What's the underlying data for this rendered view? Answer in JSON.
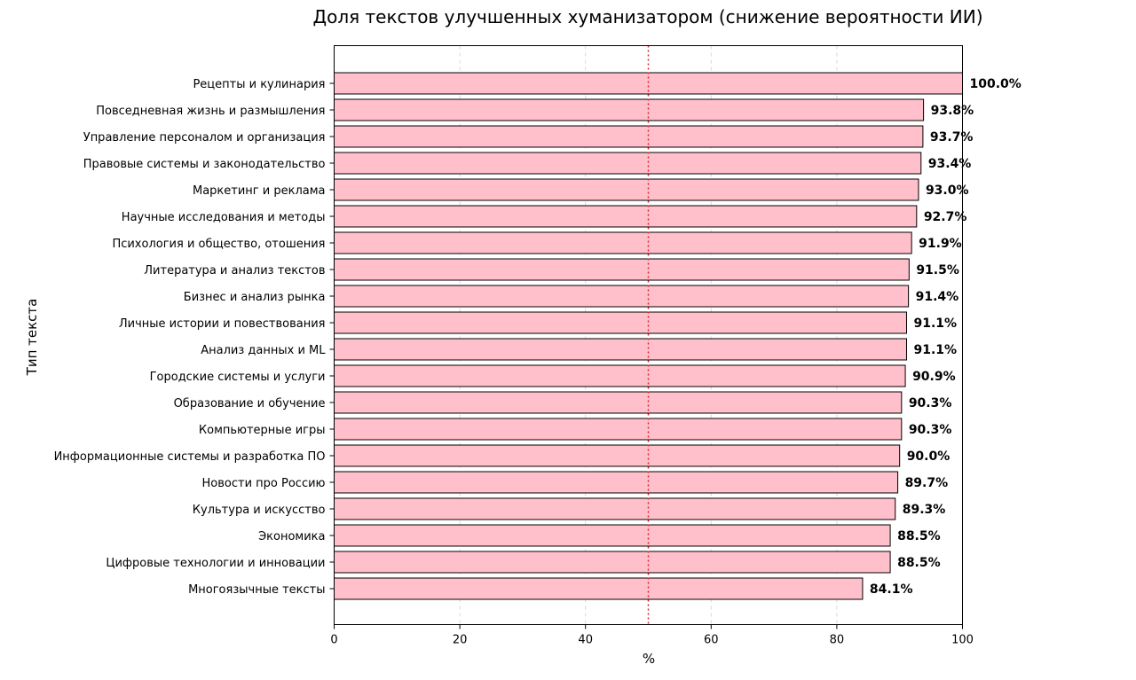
{
  "chart_data": {
    "type": "bar",
    "orientation": "horizontal",
    "title": "Доля текстов улучшенных хуманизатором (снижение вероятности ИИ)",
    "xlabel": "%",
    "ylabel": "Тип текста",
    "xlim": [
      0,
      100
    ],
    "xticks": [
      "0",
      "20",
      "40",
      "60",
      "80",
      "100"
    ],
    "grid": "vertical-dashed",
    "reference_line": {
      "x": 50,
      "style": "dotted",
      "color": "#d62728"
    },
    "bar_color": "#ffc0cb",
    "bar_edge_color": "#000000",
    "categories": [
      "Рецепты и кулинария",
      "Повседневная жизнь и размышления",
      "Управление персоналом и организация",
      "Правовые системы и законодательство",
      "Маркетинг и реклама",
      "Научные исследования и методы",
      "Психология и общество, отошения",
      "Литература и анализ текстов",
      "Бизнес и анализ рынка",
      "Личные истории и повествования",
      "Анализ данных и ML",
      "Городские системы и услуги",
      "Образование и обучение",
      "Компьютерные игры",
      "Информационные системы и разработка ПО",
      "Новости про Россию",
      "Культура и искусство",
      "Экономика",
      "Цифровые технологии и инновации",
      "Многоязычные тексты"
    ],
    "values": [
      100.0,
      93.8,
      93.7,
      93.4,
      93.0,
      92.7,
      91.9,
      91.5,
      91.4,
      91.1,
      91.1,
      90.9,
      90.3,
      90.3,
      90.0,
      89.7,
      89.3,
      88.5,
      88.5,
      84.1
    ],
    "value_labels": [
      "100.0%",
      "93.8%",
      "93.7%",
      "93.4%",
      "93.0%",
      "92.7%",
      "91.9%",
      "91.5%",
      "91.4%",
      "91.1%",
      "91.1%",
      "90.9%",
      "90.3%",
      "90.3%",
      "90.0%",
      "89.7%",
      "89.3%",
      "88.5%",
      "88.5%",
      "84.1%"
    ]
  }
}
